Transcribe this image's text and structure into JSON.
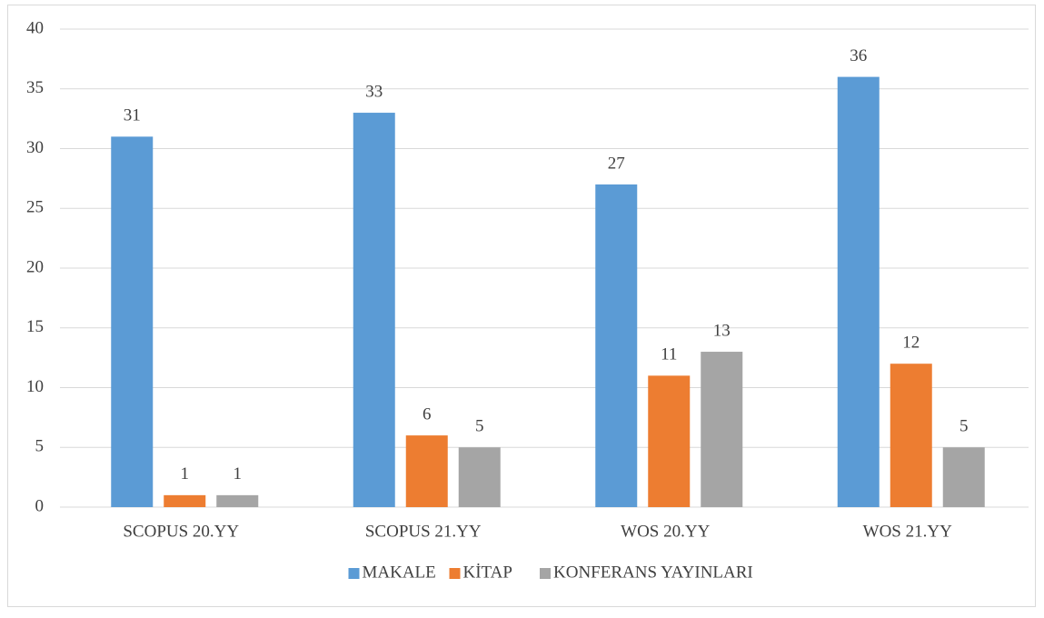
{
  "chart_data": {
    "type": "bar",
    "categories": [
      "SCOPUS 20.YY",
      "SCOPUS 21.YY",
      "WOS 20.YY",
      "WOS 21.YY"
    ],
    "series": [
      {
        "name": "MAKALE",
        "color": "#5b9bd5",
        "values": [
          31,
          33,
          27,
          36
        ]
      },
      {
        "name": "KİTAP",
        "color": "#ed7d31",
        "values": [
          1,
          6,
          11,
          12
        ]
      },
      {
        "name": "KONFERANS YAYINLARI",
        "color": "#a5a5a5",
        "values": [
          1,
          5,
          13,
          5
        ]
      }
    ],
    "ylim": [
      0,
      40
    ],
    "yticks": [
      0,
      5,
      10,
      15,
      20,
      25,
      30,
      35,
      40
    ],
    "grid": true,
    "legend": "bottom"
  }
}
